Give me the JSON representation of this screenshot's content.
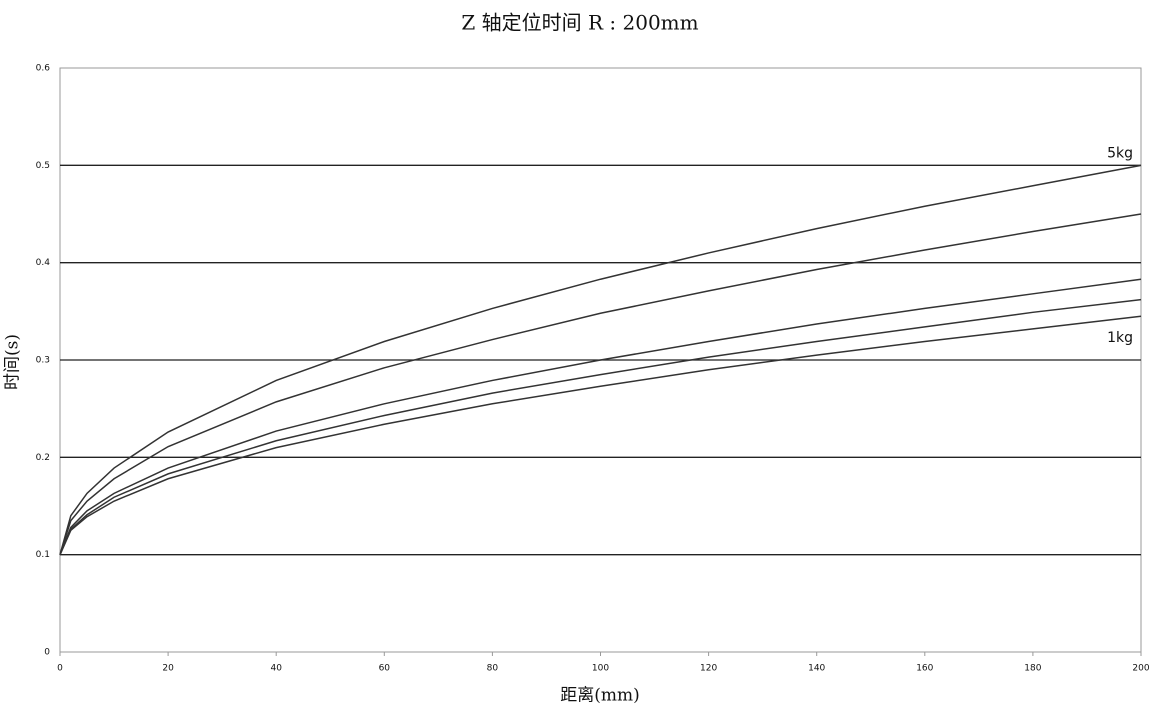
{
  "chart_data": {
    "type": "line",
    "title": "Z 轴定位时间   R : 200mm",
    "x_label": "距离(mm)",
    "y_label": "时间(s)",
    "x": [
      0,
      2,
      5,
      10,
      20,
      40,
      60,
      80,
      100,
      120,
      140,
      160,
      180,
      200
    ],
    "series": [
      {
        "color": "#333333",
        "values": [
          0.1,
          0.14,
          0.163,
          0.189,
          0.226,
          0.279,
          0.319,
          0.353,
          0.383,
          0.41,
          0.435,
          0.458,
          0.479,
          0.5
        ]
      },
      {
        "color": "#333333",
        "values": [
          0.1,
          0.135,
          0.155,
          0.178,
          0.211,
          0.257,
          0.292,
          0.321,
          0.348,
          0.371,
          0.393,
          0.413,
          0.432,
          0.45
        ]
      },
      {
        "color": "#333333",
        "values": [
          0.1,
          0.128,
          0.145,
          0.163,
          0.189,
          0.227,
          0.255,
          0.279,
          0.3,
          0.319,
          0.337,
          0.353,
          0.368,
          0.383
        ]
      },
      {
        "color": "#333333",
        "values": [
          0.1,
          0.126,
          0.141,
          0.159,
          0.183,
          0.217,
          0.243,
          0.266,
          0.285,
          0.303,
          0.319,
          0.334,
          0.349,
          0.362
        ]
      },
      {
        "color": "#333333",
        "values": [
          0.1,
          0.125,
          0.139,
          0.155,
          0.178,
          0.21,
          0.234,
          0.255,
          0.273,
          0.29,
          0.305,
          0.319,
          0.332,
          0.345
        ]
      }
    ],
    "annotations": [
      "5kg",
      "1kg"
    ],
    "xlim": [
      0,
      200
    ],
    "xticks": [
      0,
      20,
      40,
      60,
      80,
      100,
      120,
      140,
      160,
      180,
      200
    ],
    "ylim": [
      0,
      0.6
    ],
    "yticks": [
      0,
      0.1,
      0.2,
      0.3,
      0.4,
      0.5,
      0.6
    ],
    "grid": true
  }
}
